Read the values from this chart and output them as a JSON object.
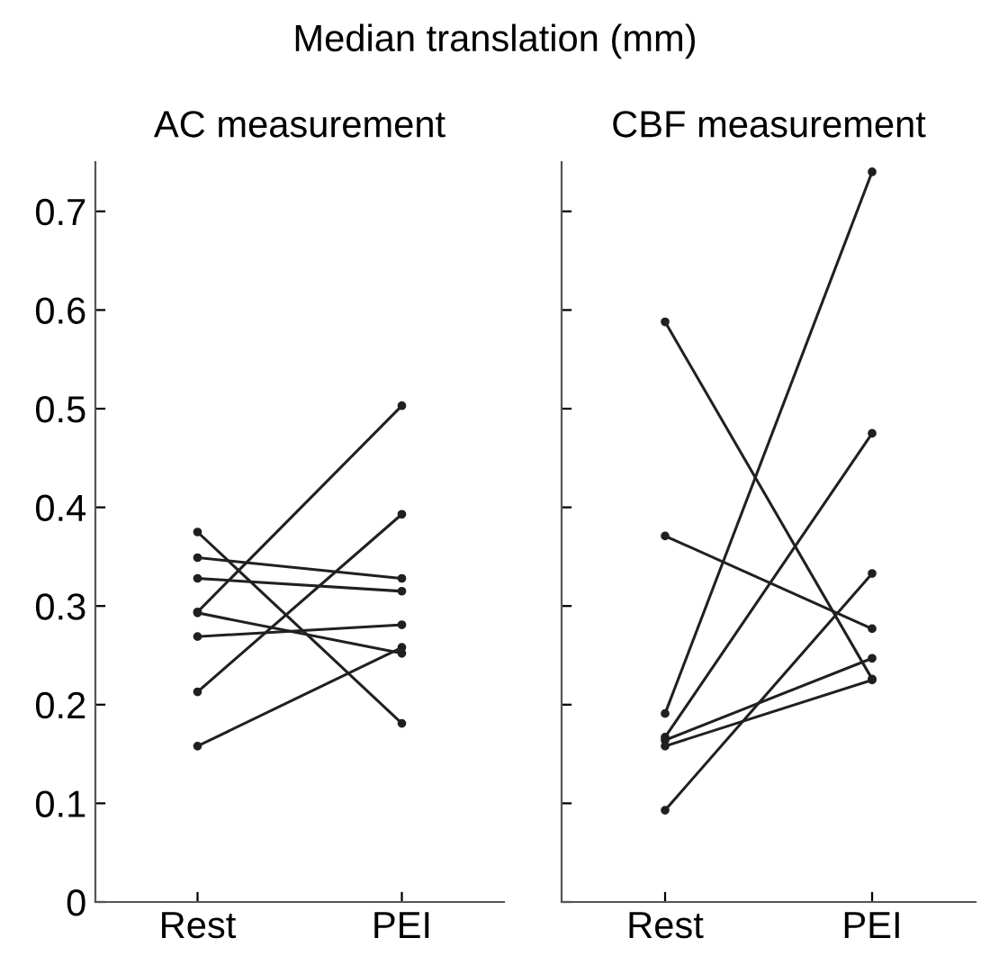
{
  "chart_data": [
    {
      "type": "line",
      "title": "Median translation (mm)",
      "subtitle": "AC measurement",
      "categories": [
        "Rest",
        "PEI"
      ],
      "ylim": [
        0,
        0.75
      ],
      "yticks": [
        0,
        0.1,
        0.2,
        0.3,
        0.4,
        0.5,
        0.6,
        0.7
      ],
      "marker": "circle",
      "line_style": "solid",
      "grid": false,
      "legend": false,
      "series": [
        {
          "color": "#202020",
          "values": [
            0.294,
            0.503
          ]
        },
        {
          "color": "#202020",
          "values": [
            0.213,
            0.393
          ]
        },
        {
          "color": "#202020",
          "values": [
            0.375,
            0.181
          ]
        },
        {
          "color": "#202020",
          "values": [
            0.349,
            0.328
          ]
        },
        {
          "color": "#202020",
          "values": [
            0.328,
            0.315
          ]
        },
        {
          "color": "#202020",
          "values": [
            0.293,
            0.252
          ]
        },
        {
          "color": "#202020",
          "values": [
            0.269,
            0.281
          ]
        },
        {
          "color": "#202020",
          "values": [
            0.158,
            0.258
          ]
        }
      ]
    },
    {
      "type": "line",
      "subtitle": "CBF measurement",
      "categories": [
        "Rest",
        "PEI"
      ],
      "ylim": [
        0,
        0.75
      ],
      "yticks": [
        0,
        0.1,
        0.2,
        0.3,
        0.4,
        0.5,
        0.6,
        0.7
      ],
      "tick_labels": "x",
      "marker": "circle",
      "line_style": "solid",
      "grid": false,
      "legend": false,
      "series": [
        {
          "color": "#202020",
          "values": [
            0.191,
            0.74
          ]
        },
        {
          "color": "#202020",
          "values": [
            0.588,
            0.226
          ]
        },
        {
          "color": "#202020",
          "values": [
            0.371,
            0.277
          ]
        },
        {
          "color": "#202020",
          "values": [
            0.167,
            0.475
          ]
        },
        {
          "color": "#202020",
          "values": [
            0.093,
            0.333
          ]
        },
        {
          "color": "#202020",
          "values": [
            0.164,
            0.247
          ]
        },
        {
          "color": "#202020",
          "values": [
            0.158,
            0.225
          ]
        }
      ]
    }
  ]
}
